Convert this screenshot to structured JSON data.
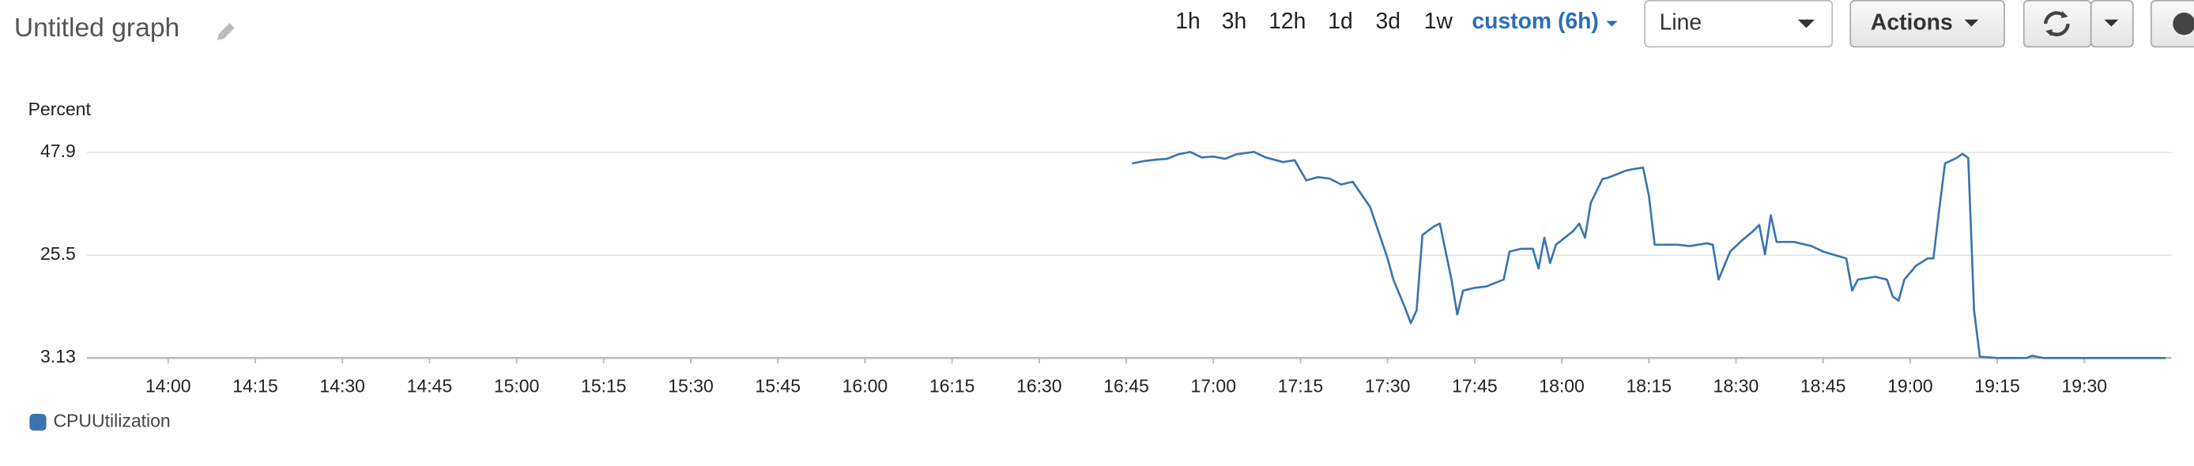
{
  "header": {
    "title": "Untitled graph"
  },
  "toolbar": {
    "ranges": [
      "1h",
      "3h",
      "12h",
      "1d",
      "3d",
      "1w"
    ],
    "custom": "custom (6h)",
    "view": "Line",
    "actions": "Actions"
  },
  "chart_data": {
    "type": "line",
    "y_label": "Percent",
    "x": [
      "16:46",
      "16:48",
      "16:50",
      "16:52",
      "16:54",
      "16:56",
      "16:58",
      "17:00",
      "17:02",
      "17:04",
      "17:07",
      "17:09",
      "17:12",
      "17:14",
      "17:16",
      "17:18",
      "17:20",
      "17:22",
      "17:24",
      "17:27",
      "17:30",
      "17:31",
      "17:33",
      "17:34",
      "17:35",
      "17:36",
      "17:38",
      "17:39",
      "17:41",
      "17:42",
      "17:43",
      "17:45",
      "17:47",
      "17:50",
      "17:51",
      "17:53",
      "17:55",
      "17:56",
      "17:57",
      "17:58",
      "17:59",
      "18:02",
      "18:03",
      "18:04",
      "18:05",
      "18:07",
      "18:08",
      "18:11",
      "18:12",
      "18:14",
      "18:15",
      "18:16",
      "18:20",
      "18:22",
      "18:25",
      "18:26",
      "18:27",
      "18:29",
      "18:31",
      "18:33",
      "18:34",
      "18:35",
      "18:36",
      "18:37",
      "18:40",
      "18:43",
      "18:45",
      "18:49",
      "18:50",
      "18:51",
      "18:54",
      "18:56",
      "18:57",
      "18:58",
      "18:59",
      "19:01",
      "19:03",
      "19:04",
      "19:05",
      "19:06",
      "19:08",
      "19:09",
      "19:10",
      "19:11",
      "19:12",
      "19:15",
      "19:20",
      "19:21",
      "19:23",
      "19:44"
    ],
    "series": [
      {
        "name": "CPUUtilization",
        "color": "#3a75b0",
        "values": [
          45.5,
          46.0,
          46.3,
          46.5,
          47.5,
          48.0,
          46.8,
          47.0,
          46.5,
          47.5,
          48.0,
          46.8,
          45.8,
          46.2,
          41.8,
          42.5,
          42.2,
          40.9,
          41.5,
          36.0,
          24.8,
          20.2,
          14.1,
          10.7,
          13.5,
          29.9,
          31.8,
          32.4,
          20.2,
          12.6,
          17.8,
          18.4,
          18.7,
          20.2,
          26.3,
          26.9,
          26.9,
          22.6,
          29.3,
          23.8,
          27.8,
          30.8,
          32.4,
          29.3,
          36.9,
          42.1,
          42.4,
          43.9,
          44.2,
          44.6,
          38.5,
          27.8,
          27.8,
          27.5,
          28.1,
          27.8,
          20.2,
          26.3,
          28.7,
          30.8,
          32.1,
          25.7,
          34.2,
          28.4,
          28.4,
          27.5,
          26.3,
          24.8,
          17.8,
          20.2,
          20.8,
          20.2,
          16.5,
          15.6,
          20.2,
          23.2,
          24.8,
          24.8,
          35.4,
          45.5,
          46.7,
          47.6,
          46.7,
          13.5,
          3.4,
          3.1,
          3.1,
          3.6,
          3.1,
          3.1
        ]
      }
    ],
    "xlim": [
      "13:46",
      "19:45"
    ],
    "xticks": [
      "14:00",
      "14:15",
      "14:30",
      "14:45",
      "15:00",
      "15:15",
      "15:30",
      "15:45",
      "16:00",
      "16:15",
      "16:30",
      "16:45",
      "17:00",
      "17:15",
      "17:30",
      "17:45",
      "18:00",
      "18:15",
      "18:30",
      "18:45",
      "19:00",
      "19:15",
      "19:30"
    ],
    "ylim": [
      3.13,
      47.9
    ],
    "yticks": [
      3.13,
      25.5,
      47.9
    ],
    "grid": true
  }
}
